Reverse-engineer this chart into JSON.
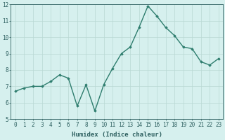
{
  "x": [
    0,
    1,
    2,
    3,
    4,
    5,
    6,
    7,
    8,
    9,
    10,
    11,
    12,
    13,
    14,
    15,
    16,
    17,
    18,
    19,
    20,
    21,
    22,
    23
  ],
  "y": [
    6.7,
    6.9,
    7.0,
    7.0,
    7.3,
    7.7,
    7.5,
    5.8,
    7.1,
    5.5,
    7.1,
    8.1,
    9.0,
    9.4,
    10.6,
    11.9,
    11.3,
    10.6,
    10.1,
    9.4,
    9.3,
    8.5,
    8.3,
    8.7
  ],
  "xlabel": "Humidex (Indice chaleur)",
  "ylim": [
    5,
    12
  ],
  "xlim": [
    -0.5,
    23.5
  ],
  "yticks": [
    5,
    6,
    7,
    8,
    9,
    10,
    11,
    12
  ],
  "xticks": [
    0,
    1,
    2,
    3,
    4,
    5,
    6,
    7,
    8,
    9,
    10,
    11,
    12,
    13,
    14,
    15,
    16,
    17,
    18,
    19,
    20,
    21,
    22,
    23
  ],
  "line_color": "#2e7d6e",
  "marker": "D",
  "marker_size": 1.8,
  "line_width": 1.0,
  "bg_color": "#d6f0ee",
  "grid_color": "#b8d8d4",
  "tick_color": "#2e6060",
  "label_color": "#2e6060",
  "font_size": 5.5,
  "xlabel_fontsize": 6.5
}
